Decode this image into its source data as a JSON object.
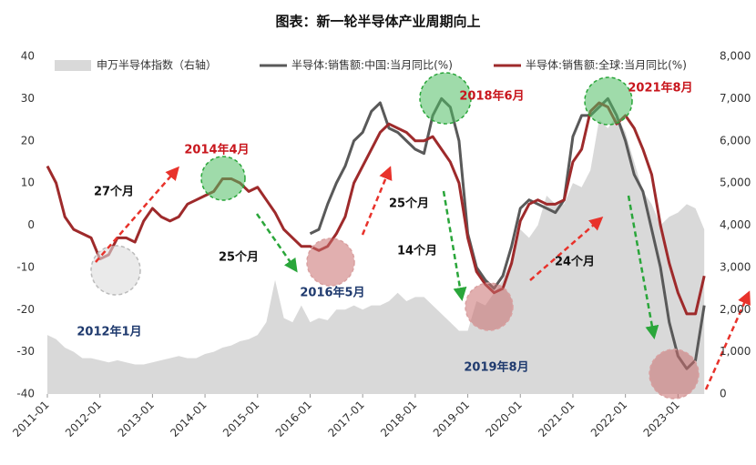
{
  "chart_data": {
    "type": "line",
    "title": "图表：新一轮半导体产业周期向上",
    "x": [
      "2011-01",
      "2011-03",
      "2011-05",
      "2011-07",
      "2011-09",
      "2011-11",
      "2012-01",
      "2012-03",
      "2012-05",
      "2012-07",
      "2012-09",
      "2012-11",
      "2013-01",
      "2013-03",
      "2013-05",
      "2013-07",
      "2013-09",
      "2013-11",
      "2014-01",
      "2014-03",
      "2014-05",
      "2014-07",
      "2014-09",
      "2014-11",
      "2015-01",
      "2015-03",
      "2015-05",
      "2015-07",
      "2015-09",
      "2015-11",
      "2016-01",
      "2016-03",
      "2016-05",
      "2016-07",
      "2016-09",
      "2016-11",
      "2017-01",
      "2017-03",
      "2017-05",
      "2017-07",
      "2017-09",
      "2017-11",
      "2018-01",
      "2018-03",
      "2018-05",
      "2018-07",
      "2018-09",
      "2018-11",
      "2019-01",
      "2019-03",
      "2019-05",
      "2019-07",
      "2019-09",
      "2019-11",
      "2020-01",
      "2020-03",
      "2020-05",
      "2020-07",
      "2020-09",
      "2020-11",
      "2021-01",
      "2021-03",
      "2021-05",
      "2021-07",
      "2021-09",
      "2021-11",
      "2022-01",
      "2022-03",
      "2022-05",
      "2022-07",
      "2022-09",
      "2022-11",
      "2023-01",
      "2023-03",
      "2023-05",
      "2023-07"
    ],
    "xlim": [
      "2011-01",
      "2023-08"
    ],
    "xticks": [
      "2011-01",
      "2012-01",
      "2013-01",
      "2014-01",
      "2015-01",
      "2016-01",
      "2017-01",
      "2018-01",
      "2019-01",
      "2020-01",
      "2021-01",
      "2022-01",
      "2023-01"
    ],
    "ylim": [
      -40,
      40
    ],
    "yticks": [
      -40,
      -30,
      -20,
      -10,
      0,
      10,
      20,
      30,
      40
    ],
    "y2lim": [
      0,
      8000
    ],
    "y2ticks": [
      0,
      {
        "value": 1000,
        "label": "1,000"
      },
      {
        "value": 2000,
        "label": "2,000"
      },
      {
        "value": 3000,
        "label": "3,000"
      },
      {
        "value": 4000,
        "label": "4,000"
      },
      {
        "value": 5000,
        "label": "5,000"
      },
      {
        "value": 6000,
        "label": "6,000"
      },
      {
        "value": 7000,
        "label": "7,000"
      },
      {
        "value": 8000,
        "label": "8,000"
      }
    ],
    "series": [
      {
        "name": "申万半导体指数（右轴）",
        "color": "#d9d9d9",
        "axis": "y2",
        "kind": "area",
        "values": [
          1400,
          1300,
          1100,
          1000,
          850,
          850,
          800,
          750,
          800,
          750,
          700,
          700,
          750,
          800,
          850,
          900,
          850,
          850,
          950,
          1000,
          1100,
          1150,
          1250,
          1300,
          1400,
          1700,
          2700,
          1800,
          1700,
          2100,
          1700,
          1800,
          1750,
          2000,
          2000,
          2100,
          2000,
          2100,
          2100,
          2200,
          2400,
          2200,
          2300,
          2300,
          2100,
          1900,
          1700,
          1500,
          1500,
          2200,
          2100,
          2400,
          2700,
          3200,
          3900,
          3700,
          4000,
          4700,
          4500,
          4500,
          5000,
          4900,
          5300,
          6500,
          6300,
          6600,
          6200,
          5500,
          4800,
          4500,
          4000,
          4200,
          4300,
          4500,
          4400,
          3900
        ]
      },
      {
        "name": "半导体:销售额:中国:当月同比(%)",
        "color": "#595959",
        "values": [
          null,
          null,
          null,
          null,
          null,
          null,
          null,
          null,
          null,
          null,
          null,
          null,
          null,
          null,
          null,
          null,
          null,
          null,
          null,
          null,
          null,
          null,
          null,
          null,
          null,
          null,
          null,
          null,
          null,
          null,
          -2,
          -1,
          5,
          10,
          14,
          20,
          22,
          27,
          29,
          23,
          22,
          20,
          18,
          17,
          26,
          30,
          28,
          20,
          -2,
          -10,
          -13,
          -15,
          -12,
          -5,
          4,
          6,
          5,
          4,
          3,
          6,
          21,
          26,
          26,
          28,
          30,
          26,
          20,
          12,
          8,
          -1,
          -10,
          -23,
          -31,
          -34,
          -32,
          -19
        ]
      },
      {
        "name": "半导体:销售额:全球:当月同比(%)",
        "color": "#9e2a2b",
        "values": [
          14,
          10,
          2,
          -1,
          -2,
          -3,
          -8,
          -7,
          -3,
          -3,
          -4,
          1,
          4,
          2,
          1,
          2,
          5,
          6,
          7,
          8,
          11,
          11,
          10,
          8,
          9,
          6,
          3,
          -1,
          -3,
          -5,
          -5,
          -6,
          -5,
          -2,
          2,
          10,
          14,
          18,
          22,
          24,
          23,
          22,
          20,
          20,
          21,
          18,
          15,
          10,
          -3,
          -11,
          -14,
          -16,
          -15,
          -9,
          1,
          5,
          6,
          5,
          5,
          6,
          15,
          18,
          27,
          29,
          28,
          24,
          26,
          23,
          18,
          12,
          0,
          -9,
          -16,
          -21,
          -21,
          -12
        ]
      }
    ],
    "annotations": [
      "27个月",
      "2014年4月",
      "25个月",
      "2016年5月",
      "2012年1月",
      "25个月",
      "2018年6月",
      "14个月",
      "2019年8月",
      "24个月",
      "2021年8月"
    ]
  }
}
